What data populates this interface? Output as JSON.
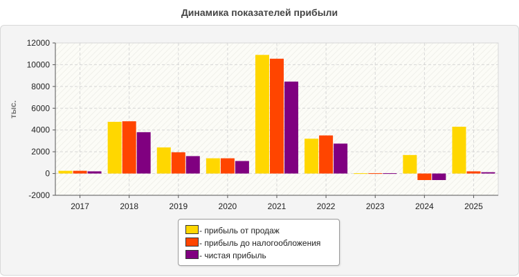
{
  "chart_data": {
    "type": "bar",
    "title": "Динамика показателей прибыли",
    "ylabel": "тыс.",
    "xlabel": "",
    "categories": [
      "2017",
      "2018",
      "2019",
      "2020",
      "2021",
      "2022",
      "2023",
      "2024",
      "2025"
    ],
    "ylim": [
      -2000,
      12000
    ],
    "yticks": [
      "-2000",
      "0",
      "2000",
      "4000",
      "6000",
      "8000",
      "10000",
      "12000"
    ],
    "grid": true,
    "legend_position": "bottom-center",
    "series": [
      {
        "name": "- прибыль от продаж",
        "color": "#FFD700",
        "values": [
          250,
          4750,
          2400,
          1400,
          10900,
          3200,
          30,
          1700,
          4300
        ]
      },
      {
        "name": "- прибыль до налогообложения",
        "color": "#FF4500",
        "values": [
          250,
          4800,
          1950,
          1400,
          10550,
          3500,
          30,
          -600,
          200
        ]
      },
      {
        "name": "- чистая прибыль",
        "color": "#800080",
        "values": [
          200,
          3800,
          1600,
          1150,
          8450,
          2750,
          30,
          -600,
          120
        ]
      }
    ]
  }
}
